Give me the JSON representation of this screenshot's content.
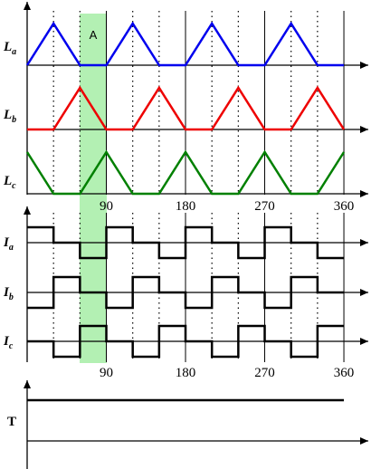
{
  "label_a": "A",
  "top_signals": [
    {
      "main": "L",
      "sub": "a"
    },
    {
      "main": "L",
      "sub": "b"
    },
    {
      "main": "L",
      "sub": "c"
    }
  ],
  "middle_signals": [
    {
      "main": "I",
      "sub": "a"
    },
    {
      "main": "I",
      "sub": "b"
    },
    {
      "main": "I",
      "sub": "c"
    }
  ],
  "bottom_signal": "T",
  "top_ticks": [
    "90",
    "180",
    "270",
    "360"
  ],
  "middle_ticks": [
    "90",
    "180",
    "270",
    "360"
  ]
}
